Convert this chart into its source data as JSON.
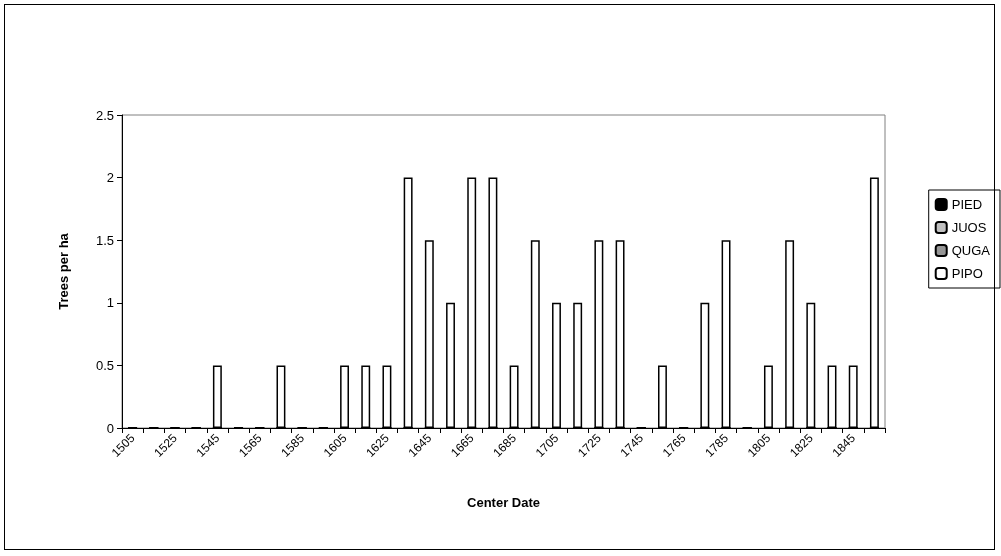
{
  "chart_data": {
    "type": "bar",
    "stacked": true,
    "xlabel": "Center Date",
    "ylabel": "Trees per ha",
    "categories": [
      "1505",
      null,
      "1525",
      null,
      "1545",
      null,
      "1565",
      null,
      "1585",
      null,
      "1605",
      null,
      "1625",
      null,
      "1645",
      null,
      "1665",
      null,
      "1685",
      null,
      "1705",
      null,
      "1725",
      null,
      "1745",
      null,
      "1765",
      null,
      "1785",
      null,
      "1805",
      null,
      "1825",
      null,
      "1845",
      null
    ],
    "series": [
      {
        "name": "PIED",
        "color": "#000000",
        "values": [
          0,
          0,
          0,
          0,
          0,
          0,
          0,
          0,
          0,
          0,
          0,
          0,
          0,
          0,
          0,
          0,
          0,
          0,
          0,
          0,
          0,
          0,
          0,
          0,
          0,
          0,
          0,
          0,
          0,
          0,
          0,
          0,
          0,
          0,
          0,
          0
        ]
      },
      {
        "name": "JUOS",
        "color": "#c0c0c0",
        "values": [
          0,
          0,
          0,
          0,
          0,
          0,
          0,
          0,
          0,
          0,
          0,
          0,
          0,
          0,
          0,
          0,
          0,
          0,
          0,
          0,
          0,
          0,
          0,
          0,
          0,
          0,
          0,
          0,
          0,
          0,
          0,
          0,
          0,
          0,
          0,
          0
        ]
      },
      {
        "name": "QUGA",
        "color": "#969696",
        "values": [
          0,
          0,
          0,
          0,
          0,
          0,
          0,
          0,
          0,
          0,
          0,
          0,
          0,
          0,
          0,
          0,
          0,
          0,
          0,
          0,
          0,
          0,
          0,
          0,
          0,
          0,
          0,
          0,
          0,
          0,
          0,
          0,
          0,
          0,
          0,
          0
        ]
      },
      {
        "name": "PIPO",
        "color": "#ffffff",
        "values": [
          0,
          0,
          0,
          0,
          0.5,
          0,
          0,
          0.5,
          0,
          0,
          0.5,
          0.5,
          0.5,
          2,
          1.5,
          1,
          2,
          2,
          0.5,
          1.5,
          1,
          1,
          1.5,
          1.5,
          0,
          0.5,
          0,
          1,
          1.5,
          0,
          0.5,
          1.5,
          1,
          0.5,
          0.5,
          2
        ]
      }
    ],
    "ylim": [
      0,
      2.5
    ],
    "yticks": [
      0,
      0.5,
      1,
      1.5,
      2,
      2.5
    ],
    "grid": false,
    "legend": "right"
  }
}
